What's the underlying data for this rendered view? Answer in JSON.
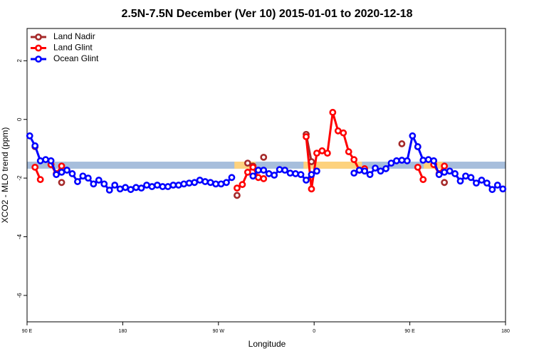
{
  "chart_data": {
    "type": "line",
    "title": "2.5N-7.5N December (Ver 10)   2015-01-01 to 2020-12-18",
    "x_label": "Longitude",
    "y_label": "XCO2 - MLO trend (ppm)",
    "xlim": [
      90,
      540
    ],
    "ylim": [
      -6.9,
      3.1
    ],
    "xticks": [
      90,
      180,
      {
        "value": 270,
        "label": "90 W"
      },
      {
        "value": 360,
        "label": "0"
      },
      {
        "value": 450,
        "label": "90 E"
      },
      {
        "value": 540,
        "label": "180"
      }
    ],
    "xtick_first_label": "90 E",
    "yticks": [
      -6,
      -4,
      -2,
      0,
      2
    ],
    "grid": false,
    "legend": "top-left",
    "band": {
      "ymin": -1.68,
      "ymax": -1.44,
      "color": "#a7bedc"
    },
    "highlights": {
      "color": "#fdd27e",
      "ranges": [
        [
          285,
          305
        ],
        [
          350,
          405
        ],
        [
          463,
          481
        ]
      ]
    },
    "x": [
      92.5,
      97.5,
      102.5,
      107.5,
      112.5,
      117.5,
      122.5,
      127.5,
      132.5,
      137.5,
      142.5,
      147.5,
      152.5,
      157.5,
      162.5,
      167.5,
      172.5,
      177.5,
      182.5,
      187.5,
      192.5,
      197.5,
      202.5,
      207.5,
      212.5,
      217.5,
      222.5,
      227.5,
      232.5,
      237.5,
      242.5,
      247.5,
      252.5,
      257.5,
      262.5,
      267.5,
      272.5,
      277.5,
      282.5,
      287.5,
      292.5,
      297.5,
      302.5,
      307.5,
      312.5,
      317.5,
      322.5,
      327.5,
      332.5,
      337.5,
      342.5,
      347.5,
      352.5,
      357.5,
      362.5,
      367.5,
      372.5,
      377.5,
      382.5,
      387.5,
      392.5,
      397.5,
      402.5,
      407.5,
      412.5,
      417.5,
      422.5,
      427.5,
      432.5,
      437.5,
      442.5,
      447.5,
      452.5,
      457.5,
      462.5,
      467.5,
      472.5,
      477.5,
      482.5,
      487.5,
      492.5,
      497.5,
      502.5,
      507.5,
      512.5,
      517.5,
      522.5,
      527.5,
      532.5,
      537.5
    ],
    "series": [
      {
        "name": "Land Nadir",
        "color": "#a52a2a",
        "values": [
          null,
          -0.93,
          null,
          null,
          null,
          null,
          -2.15,
          null,
          null,
          null,
          null,
          null,
          null,
          null,
          null,
          null,
          null,
          null,
          null,
          null,
          null,
          null,
          null,
          null,
          null,
          null,
          null,
          null,
          null,
          null,
          null,
          null,
          null,
          null,
          null,
          null,
          null,
          null,
          null,
          -2.59,
          null,
          -1.49,
          -1.59,
          null,
          -1.29,
          null,
          null,
          null,
          null,
          null,
          null,
          null,
          -0.51,
          -1.44,
          null,
          null,
          null,
          null,
          null,
          null,
          null,
          null,
          null,
          null,
          null,
          null,
          null,
          null,
          null,
          null,
          -0.83,
          null,
          null,
          -0.93,
          null,
          null,
          null,
          null,
          -2.15,
          null,
          null,
          null,
          null,
          null,
          null,
          null,
          null,
          null,
          null,
          null
        ]
      },
      {
        "name": "Land Glint",
        "color": "#ff0000",
        "values": [
          null,
          -1.63,
          -2.05,
          null,
          -1.54,
          -1.85,
          -1.59,
          null,
          null,
          null,
          null,
          null,
          null,
          null,
          null,
          null,
          null,
          null,
          null,
          null,
          null,
          null,
          null,
          null,
          null,
          null,
          null,
          null,
          null,
          null,
          null,
          null,
          null,
          null,
          null,
          null,
          null,
          null,
          null,
          -2.34,
          -2.22,
          -1.8,
          -1.63,
          -1.98,
          -2.02,
          null,
          null,
          null,
          null,
          null,
          null,
          null,
          -0.59,
          -2.37,
          -1.15,
          -1.07,
          -1.15,
          0.24,
          -0.39,
          -0.46,
          -1.1,
          -1.37,
          -1.73,
          -1.68,
          null,
          null,
          null,
          null,
          null,
          null,
          null,
          null,
          null,
          -1.63,
          -2.05,
          null,
          -1.54,
          -1.85,
          -1.59,
          null,
          null,
          null,
          null,
          null,
          null,
          null,
          null,
          null,
          null,
          null
        ]
      },
      {
        "name": "Ocean Glint",
        "color": "#0000ff",
        "values": [
          -0.56,
          -0.9,
          -1.41,
          -1.37,
          -1.41,
          -1.88,
          -1.8,
          -1.73,
          -1.85,
          -2.12,
          -1.93,
          -2.0,
          -2.2,
          -2.07,
          -2.2,
          -2.41,
          -2.24,
          -2.37,
          -2.32,
          -2.39,
          -2.32,
          -2.34,
          -2.24,
          -2.29,
          -2.24,
          -2.29,
          -2.29,
          -2.24,
          -2.24,
          -2.2,
          -2.17,
          -2.15,
          -2.07,
          -2.12,
          -2.15,
          -2.2,
          -2.2,
          -2.15,
          -1.98,
          null,
          null,
          null,
          -1.93,
          -1.73,
          -1.73,
          -1.85,
          -1.9,
          -1.71,
          -1.73,
          -1.83,
          -1.85,
          -1.88,
          -2.07,
          -1.88,
          -1.76,
          null,
          null,
          null,
          null,
          null,
          null,
          -1.83,
          -1.73,
          -1.76,
          -1.88,
          -1.66,
          -1.76,
          -1.68,
          -1.49,
          -1.41,
          -1.39,
          -1.41,
          -0.56,
          -0.93,
          -1.39,
          -1.37,
          -1.41,
          -1.88,
          -1.8,
          -1.76,
          -1.85,
          -2.1,
          -1.93,
          -1.98,
          -2.17,
          -2.07,
          -2.17,
          -2.39,
          -2.24,
          -2.37
        ]
      }
    ]
  }
}
